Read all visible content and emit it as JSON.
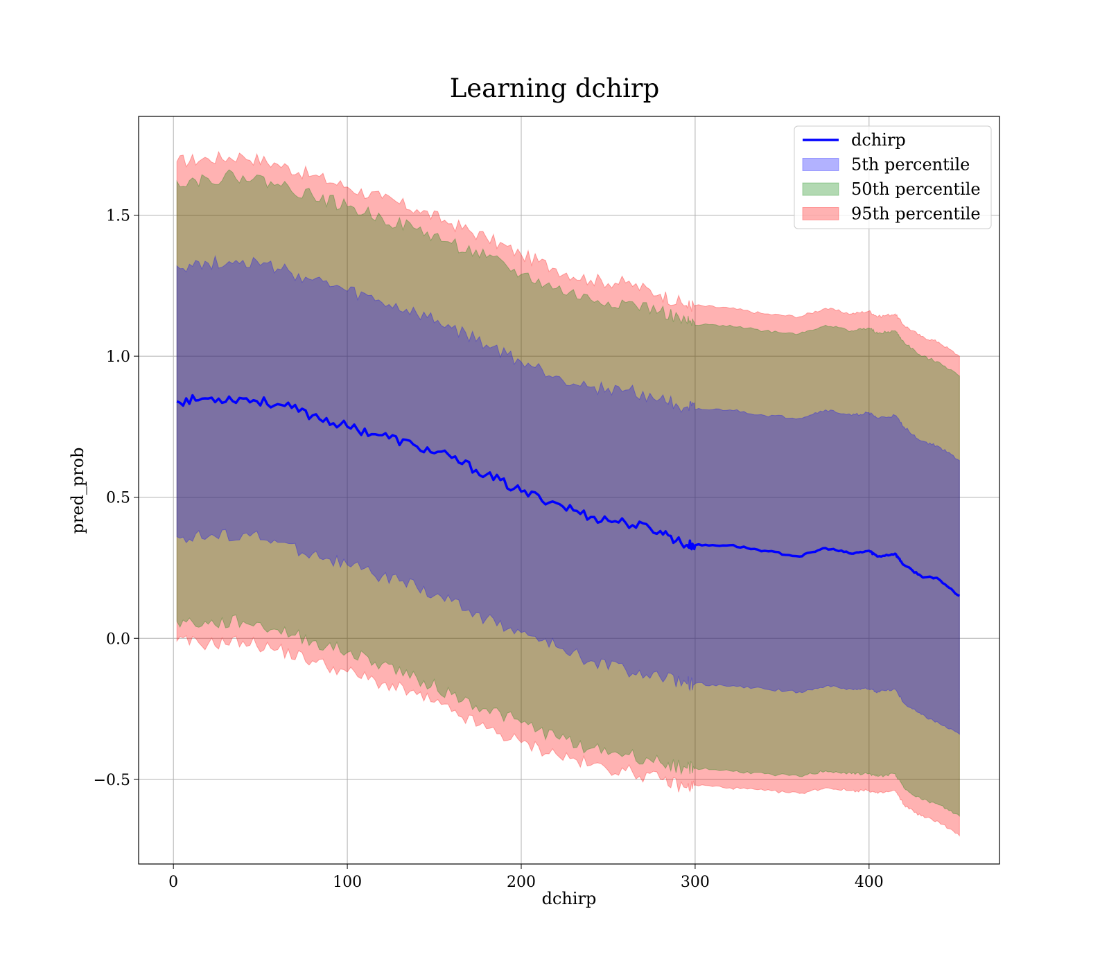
{
  "chart_data": {
    "type": "area",
    "title": "Learning dchirp",
    "xlabel": "dchirp",
    "ylabel": "pred_prob",
    "xlim": [
      -20,
      475
    ],
    "ylim": [
      -0.8,
      1.85
    ],
    "x_ticks": [
      0,
      100,
      200,
      300,
      400
    ],
    "y_ticks": [
      -0.5,
      0.0,
      0.5,
      1.0,
      1.5
    ],
    "x_tick_labels": [
      "0",
      "100",
      "200",
      "300",
      "400"
    ],
    "y_tick_labels": [
      "−0.5",
      "0.0",
      "0.5",
      "1.0",
      "1.5"
    ],
    "grid": true,
    "legend_position": "top-right",
    "x": [
      2,
      20,
      40,
      60,
      80,
      100,
      120,
      140,
      160,
      180,
      200,
      220,
      240,
      260,
      280,
      295,
      300,
      320,
      340,
      360,
      375,
      390,
      400,
      405,
      415,
      420,
      430,
      440,
      452
    ],
    "series": [
      {
        "name": "dchirp",
        "kind": "line",
        "color": "#0000ff",
        "values": [
          0.84,
          0.85,
          0.85,
          0.83,
          0.79,
          0.75,
          0.72,
          0.68,
          0.64,
          0.58,
          0.52,
          0.48,
          0.43,
          0.41,
          0.38,
          0.33,
          0.33,
          0.33,
          0.31,
          0.29,
          0.32,
          0.3,
          0.31,
          0.29,
          0.3,
          0.26,
          0.22,
          0.21,
          0.15
        ]
      },
      {
        "name": "5th percentile",
        "kind": "band",
        "color": "#0000ff",
        "lower": [
          0.36,
          0.36,
          0.37,
          0.34,
          0.3,
          0.26,
          0.22,
          0.18,
          0.13,
          0.07,
          0.02,
          -0.03,
          -0.08,
          -0.11,
          -0.14,
          -0.16,
          -0.16,
          -0.17,
          -0.18,
          -0.19,
          -0.17,
          -0.18,
          -0.18,
          -0.19,
          -0.18,
          -0.23,
          -0.27,
          -0.3,
          -0.34
        ],
        "upper": [
          1.32,
          1.33,
          1.34,
          1.31,
          1.27,
          1.23,
          1.19,
          1.15,
          1.1,
          1.04,
          0.98,
          0.93,
          0.89,
          0.88,
          0.85,
          0.82,
          0.81,
          0.81,
          0.79,
          0.78,
          0.81,
          0.79,
          0.8,
          0.78,
          0.79,
          0.75,
          0.7,
          0.68,
          0.63
        ]
      },
      {
        "name": "50th percentile",
        "kind": "band",
        "color": "#008000",
        "lower": [
          0.06,
          0.05,
          0.06,
          0.03,
          -0.01,
          -0.05,
          -0.09,
          -0.14,
          -0.2,
          -0.25,
          -0.3,
          -0.35,
          -0.39,
          -0.41,
          -0.44,
          -0.46,
          -0.46,
          -0.47,
          -0.48,
          -0.49,
          -0.47,
          -0.48,
          -0.48,
          -0.49,
          -0.48,
          -0.53,
          -0.57,
          -0.59,
          -0.63
        ],
        "upper": [
          1.62,
          1.63,
          1.64,
          1.61,
          1.57,
          1.53,
          1.49,
          1.45,
          1.4,
          1.35,
          1.29,
          1.24,
          1.2,
          1.19,
          1.16,
          1.12,
          1.11,
          1.11,
          1.09,
          1.08,
          1.11,
          1.09,
          1.1,
          1.08,
          1.09,
          1.05,
          1.0,
          0.98,
          0.93
        ]
      },
      {
        "name": "95th percentile",
        "kind": "band",
        "color": "#ff0000",
        "lower": [
          -0.01,
          -0.02,
          -0.01,
          -0.04,
          -0.08,
          -0.12,
          -0.16,
          -0.2,
          -0.26,
          -0.32,
          -0.37,
          -0.41,
          -0.45,
          -0.47,
          -0.5,
          -0.53,
          -0.52,
          -0.53,
          -0.54,
          -0.55,
          -0.53,
          -0.54,
          -0.54,
          -0.55,
          -0.54,
          -0.59,
          -0.63,
          -0.65,
          -0.7
        ],
        "upper": [
          1.69,
          1.7,
          1.71,
          1.68,
          1.64,
          1.6,
          1.56,
          1.52,
          1.47,
          1.42,
          1.36,
          1.31,
          1.27,
          1.26,
          1.22,
          1.18,
          1.18,
          1.17,
          1.15,
          1.14,
          1.17,
          1.15,
          1.16,
          1.14,
          1.15,
          1.11,
          1.07,
          1.05,
          1.0
        ]
      }
    ]
  }
}
